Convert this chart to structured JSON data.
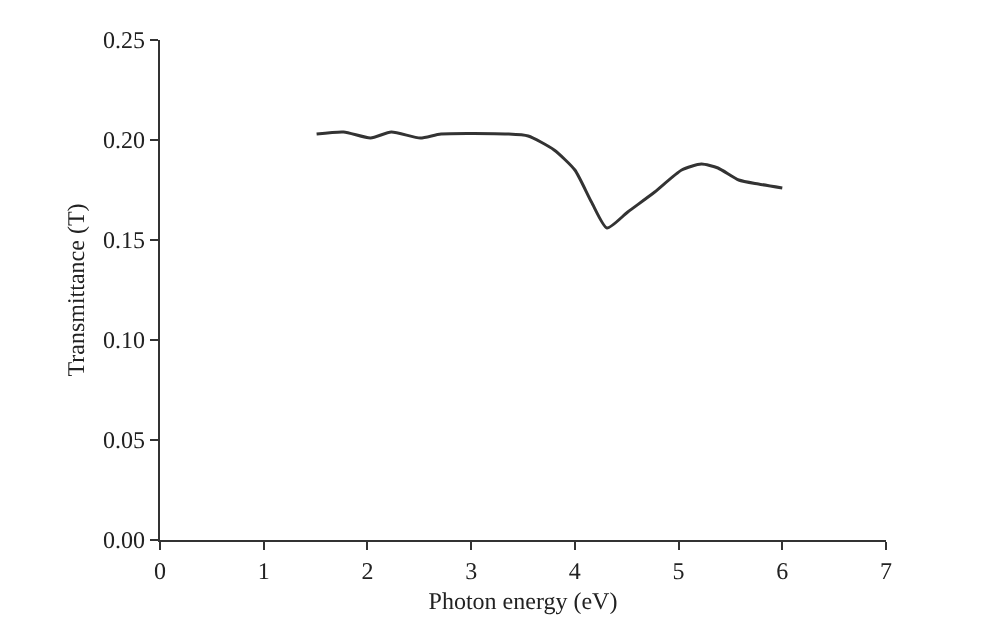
{
  "chart_data": {
    "type": "line",
    "xlabel": "Photon energy (eV)",
    "ylabel": "Transmittance (T)",
    "x": [
      1.51,
      1.77,
      2.03,
      2.23,
      2.51,
      2.71,
      3.35,
      3.55,
      3.8,
      4.0,
      4.16,
      4.31,
      4.51,
      4.77,
      5.03,
      5.22,
      5.38,
      5.58,
      5.77,
      6.0
    ],
    "values": [
      0.203,
      0.204,
      0.201,
      0.204,
      0.201,
      0.203,
      0.203,
      0.202,
      0.195,
      0.185,
      0.169,
      0.156,
      0.164,
      0.174,
      0.185,
      0.188,
      0.186,
      0.18,
      0.178,
      0.176
    ],
    "color": "#333333",
    "xlim": [
      0,
      7
    ],
    "xticks": [
      0,
      1,
      2,
      3,
      4,
      5,
      6,
      7
    ],
    "ylim": [
      0,
      0.25
    ],
    "yticks": [
      {
        "value": 0,
        "label": "0.00"
      },
      {
        "value": 0.05,
        "label": "0.05"
      },
      {
        "value": 0.1,
        "label": "0.10"
      },
      {
        "value": 0.15,
        "label": "0.15"
      },
      {
        "value": 0.2,
        "label": "0.20"
      },
      {
        "value": 0.25,
        "label": "0.25"
      }
    ],
    "marker": "none",
    "line_style": "solid"
  }
}
